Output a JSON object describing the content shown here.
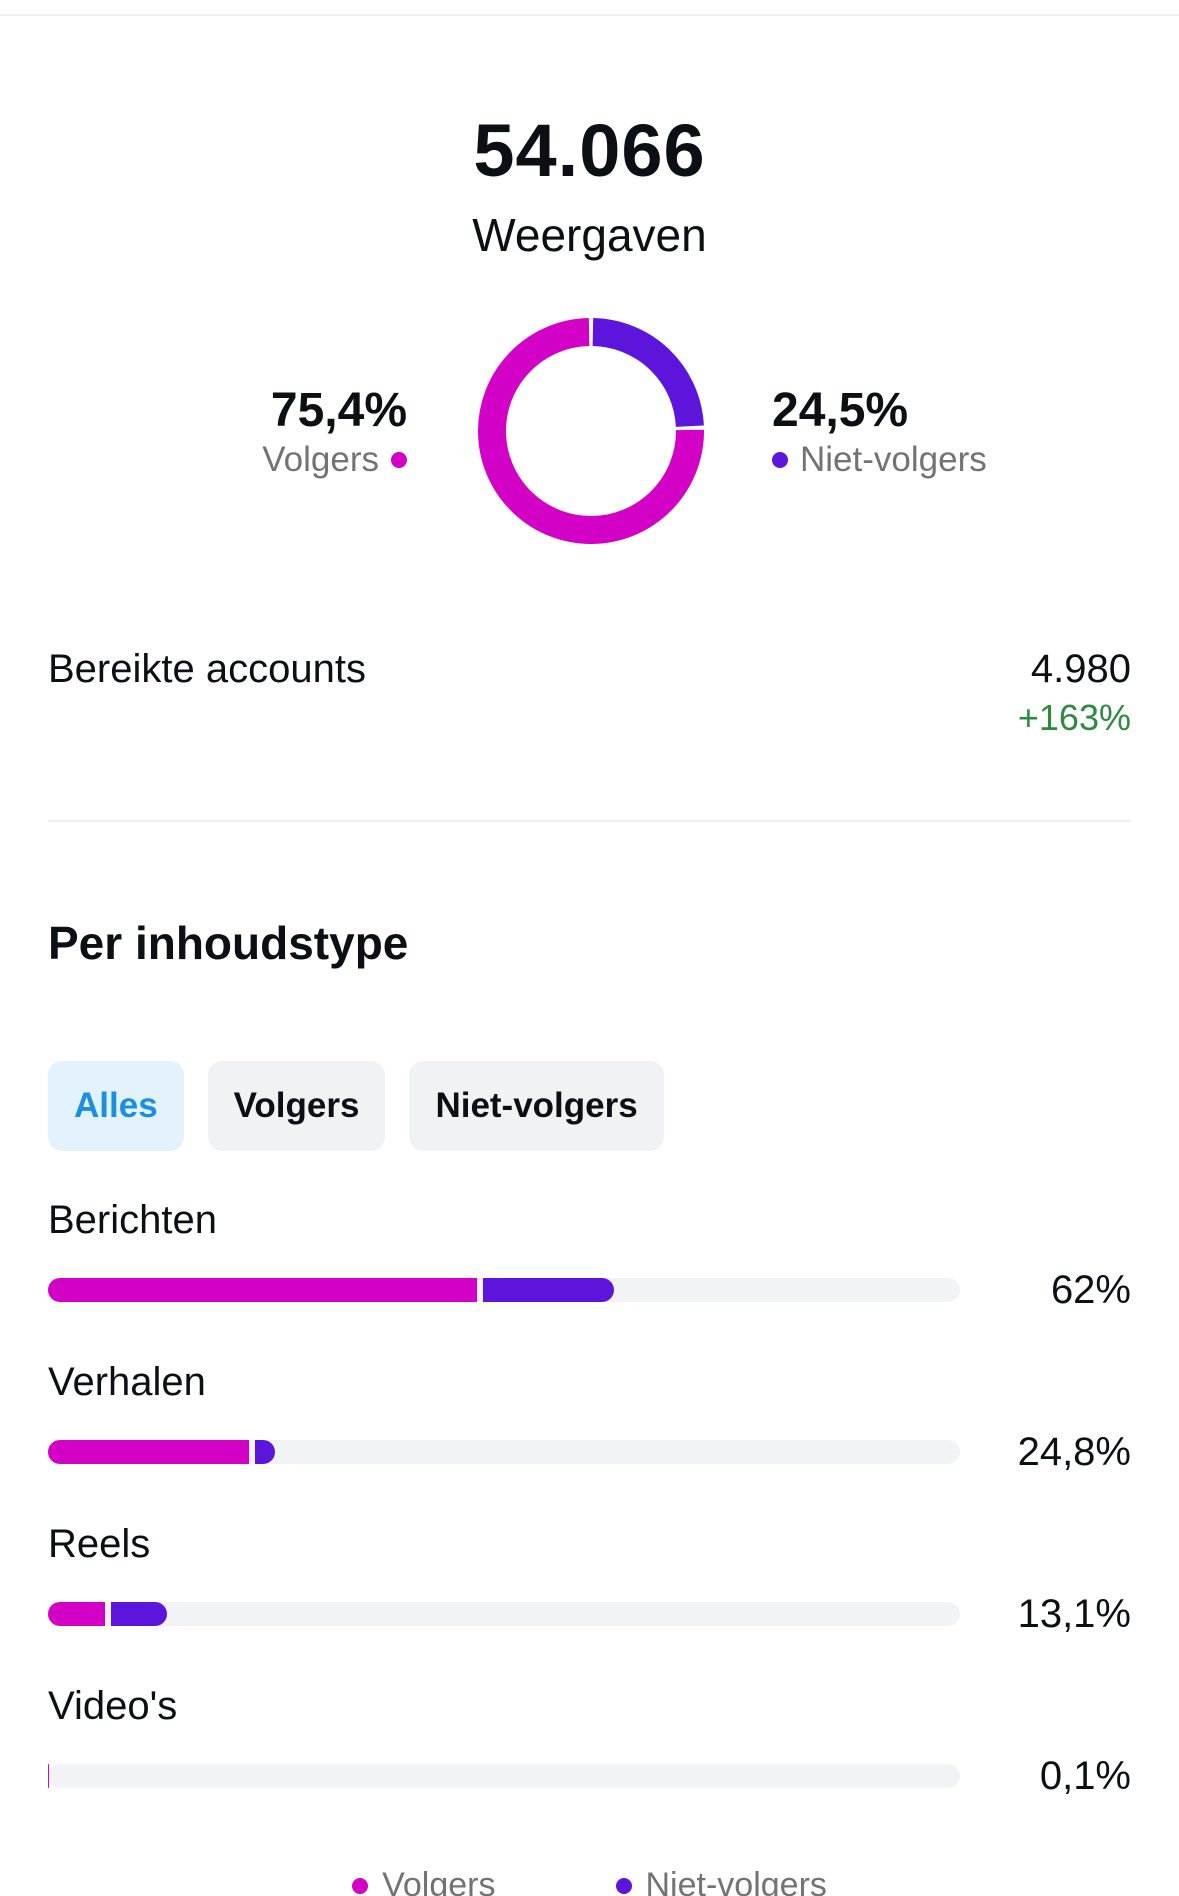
{
  "summary": {
    "total": "54.066",
    "total_label": "Weergaven"
  },
  "split": {
    "followers": {
      "pct": "75,4%",
      "label": "Volgers",
      "value": 75.4,
      "color": "#d300c5"
    },
    "non_followers": {
      "pct": "24,5%",
      "label": "Niet-volgers",
      "value": 24.5,
      "color": "#5d15dc"
    }
  },
  "reach": {
    "label": "Bereikte accounts",
    "value": "4.980",
    "change": "+163%"
  },
  "content_type": {
    "title": "Per inhoudstype",
    "tabs": [
      "Alles",
      "Volgers",
      "Niet-volgers"
    ],
    "active_tab": "Alles",
    "rows": [
      {
        "label": "Berichten",
        "pct": "62%",
        "followers": 47.0,
        "non_followers": 15.0
      },
      {
        "label": "Verhalen",
        "pct": "24,8%",
        "followers": 22.0,
        "non_followers": 2.8
      },
      {
        "label": "Reels",
        "pct": "13,1%",
        "followers": 6.3,
        "non_followers": 6.8
      },
      {
        "label": "Video's",
        "pct": "0,1%",
        "followers": 0.1,
        "non_followers": 0.0
      }
    ]
  },
  "legend": {
    "followers": "Volgers",
    "non_followers": "Niet-volgers"
  }
}
